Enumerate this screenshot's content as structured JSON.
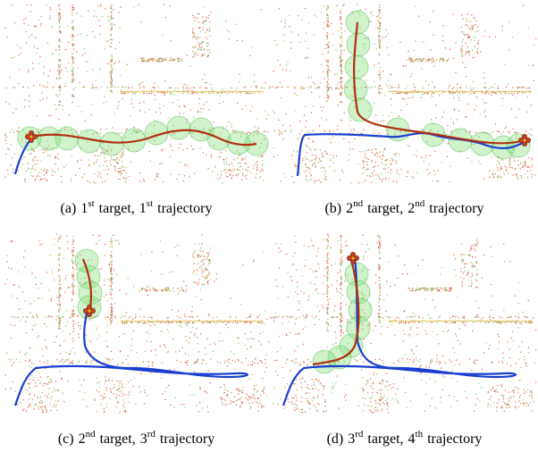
{
  "panels": [
    {
      "label": "(a)",
      "target_ordinal": "1",
      "target_suffix": "st",
      "target_word": "target,",
      "trajectory_ordinal": "1",
      "trajectory_suffix": "st",
      "trajectory_word": "trajectory"
    },
    {
      "label": "(b)",
      "target_ordinal": "2",
      "target_suffix": "nd",
      "target_word": "target,",
      "trajectory_ordinal": "2",
      "trajectory_suffix": "nd",
      "trajectory_word": "trajectory"
    },
    {
      "label": "(c)",
      "target_ordinal": "2",
      "target_suffix": "nd",
      "target_word": "target,",
      "trajectory_ordinal": "3",
      "trajectory_suffix": "rd",
      "trajectory_word": "trajectory"
    },
    {
      "label": "(d)",
      "target_ordinal": "3",
      "target_suffix": "rd",
      "target_word": "target,",
      "trajectory_ordinal": "4",
      "trajectory_suffix": "th",
      "trajectory_word": "trajectory"
    }
  ]
}
